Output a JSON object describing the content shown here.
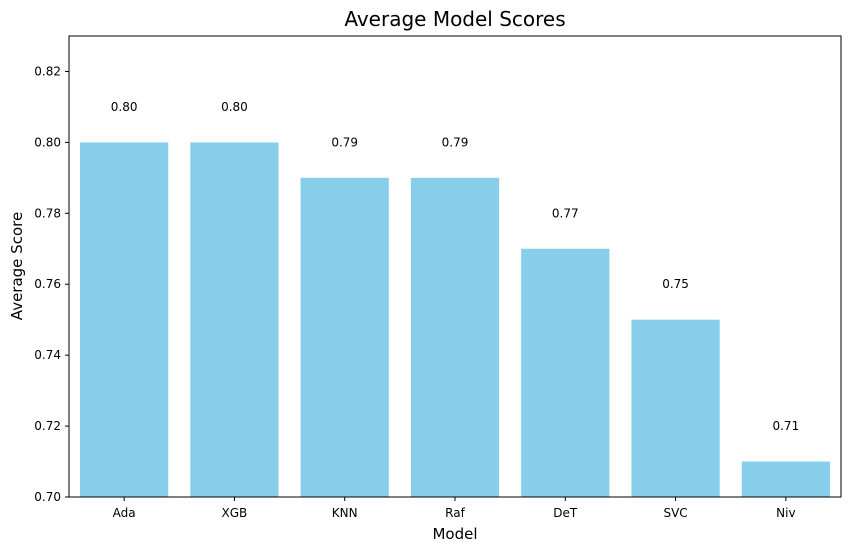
{
  "chart_data": {
    "type": "bar",
    "title": "Average Model Scores",
    "xlabel": "Model",
    "ylabel": "Average Score",
    "categories": [
      "Ada",
      "XGB",
      "KNN",
      "Raf",
      "DeT",
      "SVC",
      "Niv"
    ],
    "values": [
      0.8,
      0.8,
      0.79,
      0.79,
      0.77,
      0.75,
      0.71
    ],
    "data_labels": [
      "0.80",
      "0.80",
      "0.79",
      "0.79",
      "0.77",
      "0.75",
      "0.71"
    ],
    "ylim": [
      0.7,
      0.83
    ],
    "yticks": [
      "0.70",
      "0.72",
      "0.74",
      "0.76",
      "0.78",
      "0.80",
      "0.82"
    ],
    "bar_color": "#87CEEB",
    "grid": false,
    "legend": "none"
  }
}
